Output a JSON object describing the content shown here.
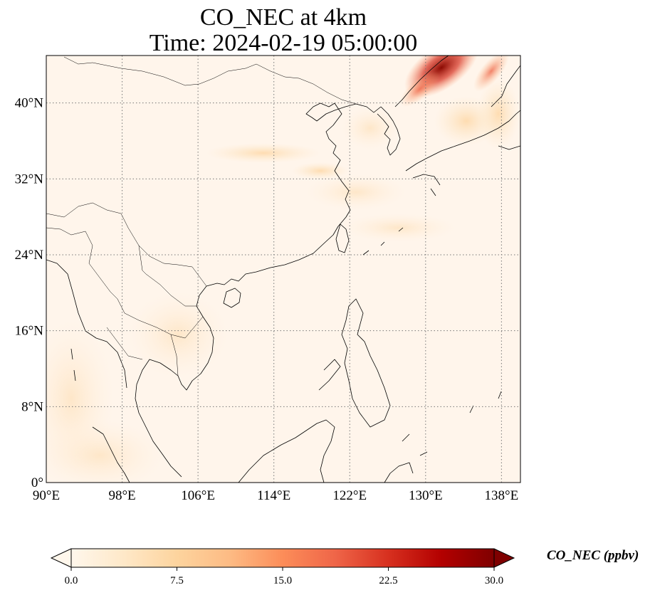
{
  "title": {
    "line1": "CO_NEC at 4km",
    "line2": "Time: 2024-02-19 05:00:00"
  },
  "map": {
    "lon_range": [
      90,
      140
    ],
    "lat_range": [
      0,
      45
    ],
    "x_ticks": [
      "90°E",
      "98°E",
      "106°E",
      "114°E",
      "122°E",
      "130°E",
      "138°E"
    ],
    "x_tick_values": [
      90,
      98,
      106,
      114,
      122,
      130,
      138
    ],
    "y_ticks": [
      "0°",
      "8°N",
      "16°N",
      "24°N",
      "32°N",
      "40°N"
    ],
    "y_tick_values": [
      0,
      8,
      16,
      24,
      32,
      40
    ],
    "gridlines": "dotted",
    "coastlines": true,
    "borders": true,
    "background_color": "#fff5eb"
  },
  "colorbar": {
    "label": "CO_NEC (ppbv)",
    "range": [
      0,
      30
    ],
    "ticks": [
      "0.0",
      "7.5",
      "15.0",
      "22.5",
      "30.0"
    ],
    "tick_values": [
      0,
      7.5,
      15,
      22.5,
      30
    ],
    "colormap": "OrRd",
    "colors": [
      "#fff7ec",
      "#fee8c8",
      "#fdd49e",
      "#fdbb84",
      "#fc8d59",
      "#ef6548",
      "#d7301f",
      "#b30000",
      "#7f0000"
    ],
    "extend": "both"
  }
}
